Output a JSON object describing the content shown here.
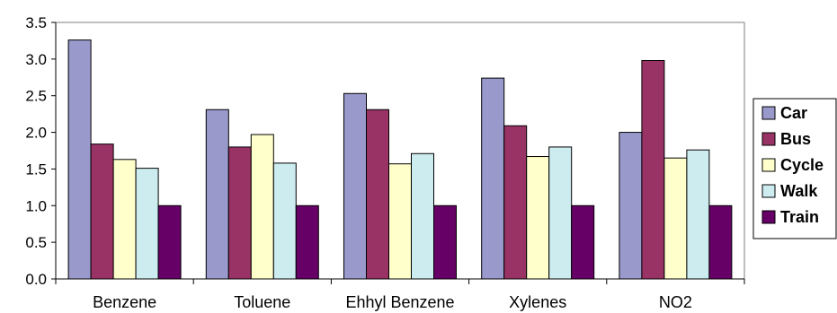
{
  "chart_data": {
    "type": "bar",
    "title": "",
    "xlabel": "",
    "ylabel": "",
    "categories": [
      "Benzene",
      "Toluene",
      "Ehhyl Benzene",
      "Xylenes",
      "NO2"
    ],
    "ylim": [
      0,
      3.5
    ],
    "yticks": [
      "0.0",
      "0.5",
      "1.0",
      "1.5",
      "2.0",
      "2.5",
      "3.0",
      "3.5"
    ],
    "grid": false,
    "legend_position": "right",
    "series": [
      {
        "name": "Car",
        "color": "#9999cc",
        "values": [
          3.26,
          2.31,
          2.53,
          2.74,
          2.0
        ]
      },
      {
        "name": "Bus",
        "color": "#993366",
        "values": [
          1.84,
          1.8,
          2.31,
          2.09,
          2.98
        ]
      },
      {
        "name": "Cycle",
        "color": "#ffffcc",
        "values": [
          1.63,
          1.97,
          1.57,
          1.67,
          1.65
        ]
      },
      {
        "name": "Walk",
        "color": "#ccecf0",
        "values": [
          1.51,
          1.58,
          1.71,
          1.8,
          1.76
        ]
      },
      {
        "name": "Train",
        "color": "#660066",
        "values": [
          1.0,
          1.0,
          1.0,
          1.0,
          1.0
        ]
      }
    ]
  }
}
